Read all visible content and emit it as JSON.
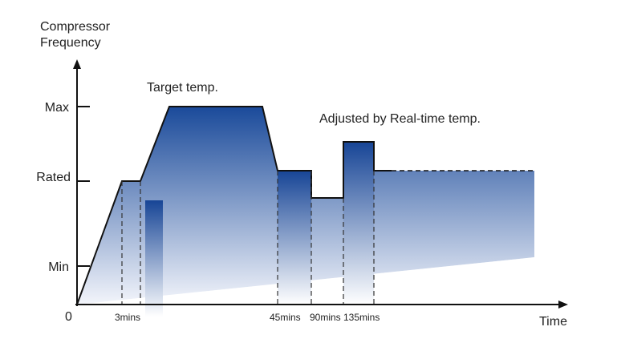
{
  "y_axis_title": [
    "Compressor",
    "Frequency"
  ],
  "x_axis_title": "Time",
  "origin_label": "0",
  "y_ticks": [
    "Max",
    "Rated",
    "Min"
  ],
  "x_ticks": [
    "3mins",
    "45mins",
    "90mins",
    "135mins"
  ],
  "annotations": {
    "target": "Target temp.",
    "adjusted": "Adjusted by Real-time temp."
  },
  "colors": {
    "dark_blue": "#1a4a9a",
    "light_blue": "#eef1f8",
    "axis": "#111111",
    "text": "#222222"
  }
}
